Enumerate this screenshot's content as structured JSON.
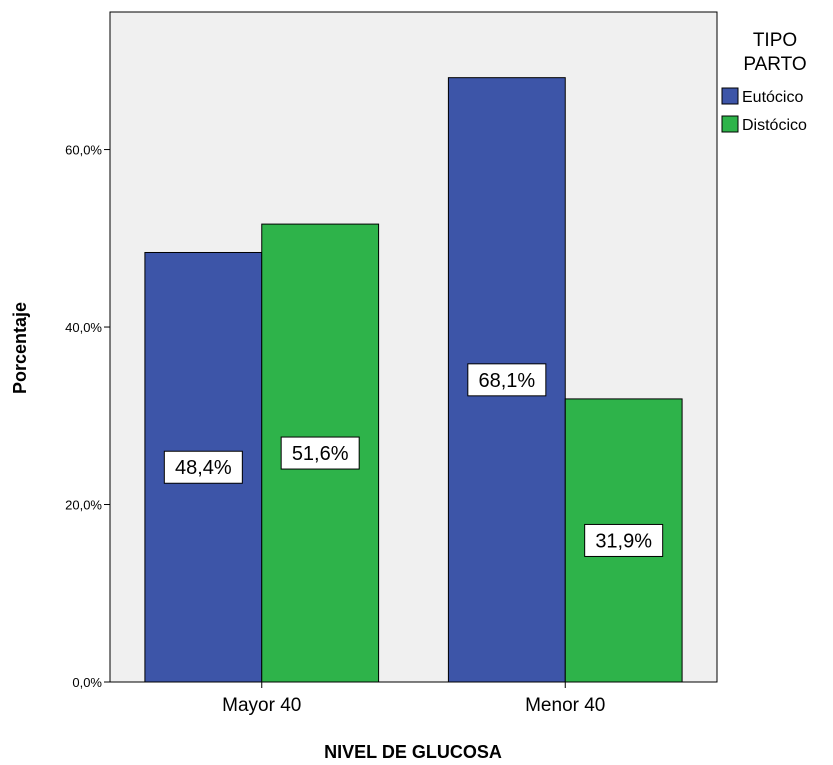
{
  "chart_data": {
    "type": "bar",
    "xlabel": "NIVEL DE GLUCOSA",
    "ylabel": "Porcentaje",
    "categories": [
      "Mayor 40",
      "Menor 40"
    ],
    "series": [
      {
        "name": "Eutócico",
        "values": [
          48.4,
          68.1
        ],
        "labels": [
          "48,4%",
          "68,1%"
        ],
        "color": "#3d55a8"
      },
      {
        "name": "Distócico",
        "values": [
          51.6,
          31.9
        ],
        "labels": [
          "51,6%",
          "31,9%"
        ],
        "color": "#2eb34a"
      }
    ],
    "ylim": [
      0,
      75.5
    ],
    "yticks": [
      0,
      20,
      40,
      60
    ],
    "ytick_labels": [
      "0,0%",
      "20,0%",
      "40,0%",
      "60,0%"
    ],
    "legend": {
      "title_lines": [
        "TIPO",
        "PARTO"
      ],
      "placement": "top-right outside"
    },
    "grid": false,
    "plot_background": "#f0f0f0"
  }
}
